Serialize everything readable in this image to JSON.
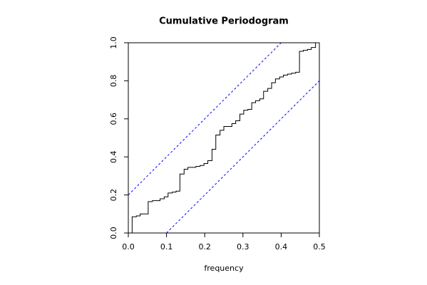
{
  "chart_data": {
    "type": "step",
    "title": "Cumulative Periodogram",
    "x_label": "frequency",
    "x": [
      0.01,
      0.021,
      0.031,
      0.042,
      0.052,
      0.063,
      0.073,
      0.083,
      0.094,
      0.104,
      0.115,
      0.125,
      0.135,
      0.146,
      0.156,
      0.167,
      0.177,
      0.188,
      0.198,
      0.208,
      0.219,
      0.229,
      0.24,
      0.25,
      0.26,
      0.271,
      0.281,
      0.292,
      0.302,
      0.313,
      0.323,
      0.333,
      0.344,
      0.354,
      0.365,
      0.375,
      0.385,
      0.396,
      0.406,
      0.417,
      0.427,
      0.438,
      0.448,
      0.458,
      0.469,
      0.479,
      0.49
    ],
    "values": [
      0.085,
      0.09,
      0.1,
      0.1,
      0.165,
      0.17,
      0.17,
      0.18,
      0.19,
      0.21,
      0.215,
      0.22,
      0.31,
      0.335,
      0.345,
      0.345,
      0.35,
      0.355,
      0.365,
      0.38,
      0.44,
      0.515,
      0.54,
      0.56,
      0.56,
      0.575,
      0.59,
      0.625,
      0.645,
      0.65,
      0.685,
      0.695,
      0.705,
      0.745,
      0.76,
      0.79,
      0.81,
      0.82,
      0.83,
      0.835,
      0.84,
      0.845,
      0.955,
      0.96,
      0.965,
      0.975,
      1.0
    ],
    "color": "#000000",
    "reference_lines": [
      {
        "color": "#0000ff",
        "x": [
          0,
          0.4
        ],
        "values": [
          0.2,
          1.0
        ]
      },
      {
        "color": "#0000ff",
        "x": [
          0.1,
          0.5
        ],
        "values": [
          0,
          0.8
        ]
      }
    ],
    "xlim": [
      0,
      0.5
    ],
    "ylim": [
      0,
      1
    ],
    "xticks": [
      {
        "value": 0,
        "label": "0.0"
      },
      0.1,
      0.2,
      0.3,
      0.4,
      0.5
    ],
    "yticks": [
      {
        "value": 0,
        "label": "0.0"
      },
      0.2,
      0.4,
      0.6,
      0.8,
      {
        "value": 1,
        "label": "1.0"
      }
    ]
  }
}
